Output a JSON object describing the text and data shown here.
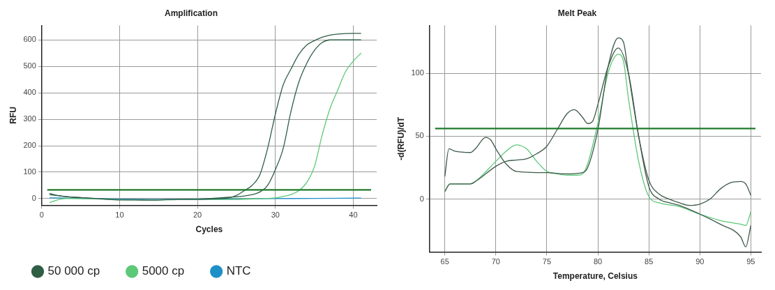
{
  "chart_data": [
    {
      "type": "line",
      "title": "Amplification",
      "xlabel": "Cycles",
      "ylabel": "RFU",
      "xlim": [
        0,
        43
      ],
      "ylim": [
        -25,
        655
      ],
      "xticks": [
        0,
        10,
        20,
        30,
        40
      ],
      "yticks": [
        0,
        100,
        200,
        300,
        400,
        500,
        600
      ],
      "grid": true,
      "legend": "bottom",
      "series": [
        {
          "name": "50 000 cp",
          "color": "#2f5e45",
          "x": [
            1,
            2,
            3,
            4,
            6,
            8,
            10,
            12,
            14,
            16,
            18,
            20,
            22,
            24,
            25,
            26,
            27,
            28,
            29,
            30,
            31,
            32,
            33,
            34,
            35,
            36,
            37,
            38,
            40,
            41
          ],
          "values": [
            20,
            12,
            8,
            5,
            2,
            -2,
            -5,
            -5,
            -6,
            -4,
            -3,
            -3,
            -1,
            3,
            12,
            30,
            50,
            90,
            190,
            320,
            430,
            490,
            545,
            580,
            597,
            610,
            618,
            622,
            625,
            625
          ]
        },
        {
          "name": "5000 cp",
          "color": "#5cc878",
          "x": [
            1,
            2,
            3,
            5,
            10,
            15,
            20,
            25,
            28,
            30,
            31,
            32,
            33,
            34,
            35,
            36,
            37,
            38,
            39,
            40,
            41
          ],
          "values": [
            -15,
            -5,
            0,
            0,
            -4,
            -5,
            -3,
            -3,
            0,
            3,
            8,
            15,
            30,
            60,
            120,
            240,
            340,
            410,
            480,
            520,
            550
          ]
        },
        {
          "name": "NTC",
          "color": "#1e90c8",
          "x": [
            1,
            5,
            10,
            15,
            20,
            25,
            30,
            35,
            41
          ],
          "values": [
            3,
            1,
            -2,
            -3,
            -2,
            -1,
            0,
            1,
            2
          ]
        },
        {
          "color": "#2f5e45",
          "x": [
            1,
            3,
            5,
            10,
            15,
            20,
            24,
            26,
            27,
            28,
            29,
            30,
            31,
            32,
            33,
            34,
            35,
            36,
            37,
            41
          ],
          "values": [
            15,
            8,
            4,
            -3,
            -4,
            -2,
            5,
            10,
            15,
            25,
            50,
            110,
            190,
            330,
            440,
            510,
            560,
            590,
            600,
            600
          ]
        }
      ],
      "ref_lines": [
        {
          "axis": "y",
          "value": 33,
          "color": "#1f7a2a"
        }
      ]
    },
    {
      "type": "line",
      "title": "Melt Peak",
      "xlabel": "Temperature, Celsius",
      "ylabel": "-d(RFU)/dT",
      "xlim": [
        63.5,
        96
      ],
      "ylim": [
        -42,
        138
      ],
      "xticks": [
        65,
        70,
        75,
        80,
        85,
        90,
        95
      ],
      "yticks": [
        0,
        50,
        100
      ],
      "grid": true,
      "series": [
        {
          "color": "#3f5a4a",
          "x": [
            65,
            65.4,
            66,
            67.5,
            68,
            69,
            69.5,
            70,
            71,
            72,
            75,
            77,
            78.5,
            79,
            80,
            81,
            82,
            82.5,
            83,
            84,
            85,
            86,
            87,
            88,
            89,
            90,
            91,
            92,
            93,
            94,
            94.5,
            95
          ],
          "values": [
            18,
            40,
            38,
            37,
            40,
            49,
            47,
            40,
            28,
            22,
            21,
            20,
            21,
            25,
            55,
            105,
            128,
            125,
            100,
            50,
            15,
            4,
            0,
            -3,
            -5,
            -4,
            0,
            8,
            13,
            14,
            12,
            3
          ]
        },
        {
          "color": "#3f5a4a",
          "x": [
            65,
            65.5,
            67.5,
            68,
            70,
            71,
            72,
            73,
            74,
            75,
            76,
            77,
            77.7,
            78.5,
            79,
            79.5,
            80,
            81,
            82,
            83,
            84,
            85,
            86,
            87,
            88,
            90,
            92,
            94,
            94.5,
            95
          ],
          "values": [
            6,
            12,
            12,
            14,
            26,
            30,
            31,
            32,
            36,
            42,
            55,
            68,
            71,
            65,
            60,
            62,
            75,
            105,
            120,
            100,
            50,
            10,
            0,
            -3,
            -5,
            -12,
            -20,
            -30,
            -38,
            -21
          ]
        },
        {
          "color": "#5cc878",
          "x": [
            65,
            65.5,
            67.5,
            68,
            70,
            71,
            72,
            73,
            74,
            75,
            76,
            77,
            78,
            78.5,
            79,
            80,
            81,
            82,
            82.5,
            83,
            84,
            85,
            86,
            88,
            90,
            92,
            94,
            94.5,
            95
          ],
          "values": [
            6,
            12,
            12,
            14,
            30,
            38,
            43,
            40,
            30,
            22,
            20,
            19,
            19,
            20,
            28,
            60,
            100,
            115,
            110,
            80,
            30,
            2,
            -3,
            -6,
            -12,
            -17,
            -20,
            -21,
            -10
          ]
        }
      ],
      "ref_lines": [
        {
          "axis": "y",
          "value": 56,
          "color": "#1f7a2a"
        }
      ]
    }
  ]
}
